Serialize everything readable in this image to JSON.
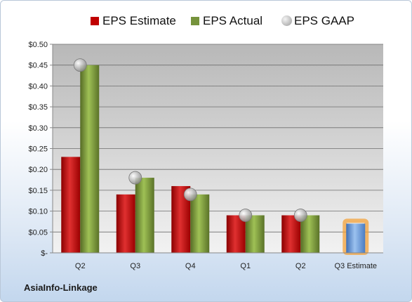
{
  "company": "AsiaInfo-Linkage",
  "legend": [
    {
      "label": "EPS Estimate",
      "color": "#c00000",
      "shape": "square"
    },
    {
      "label": "EPS Actual",
      "color": "#76933c",
      "shape": "square"
    },
    {
      "label": "EPS GAAP",
      "color": "#b0b0b0",
      "shape": "circle"
    }
  ],
  "chart_data": {
    "type": "bar",
    "title": "",
    "xlabel": "",
    "ylabel": "",
    "ylim": [
      0,
      0.5
    ],
    "y_ticks": [
      "$-",
      "$0.05",
      "$0.10",
      "$0.15",
      "$0.20",
      "$0.25",
      "$0.30",
      "$0.35",
      "$0.40",
      "$0.45",
      "$0.50"
    ],
    "y_tick_values": [
      0,
      0.05,
      0.1,
      0.15,
      0.2,
      0.25,
      0.3,
      0.35,
      0.4,
      0.45,
      0.5
    ],
    "categories": [
      "Q2",
      "Q3",
      "Q4",
      "Q1",
      "Q2",
      "Q3 Estimate"
    ],
    "series": [
      {
        "name": "EPS Estimate",
        "type": "bar",
        "color": "#c00000",
        "values": [
          0.23,
          0.14,
          0.16,
          0.09,
          0.09,
          null
        ]
      },
      {
        "name": "EPS Actual",
        "type": "bar",
        "color": "#76933c",
        "values": [
          0.45,
          0.18,
          0.14,
          0.09,
          0.09,
          null
        ]
      },
      {
        "name": "EPS GAAP",
        "type": "scatter",
        "color": "#b0b0b0",
        "values": [
          0.45,
          0.18,
          0.14,
          0.09,
          0.09,
          null
        ]
      },
      {
        "name": "",
        "type": "bar",
        "color": "#6fa0dc",
        "highlight": "#f0a030",
        "values": [
          null,
          null,
          null,
          null,
          null,
          0.07
        ]
      }
    ],
    "grid": true,
    "legend_position": "top"
  }
}
